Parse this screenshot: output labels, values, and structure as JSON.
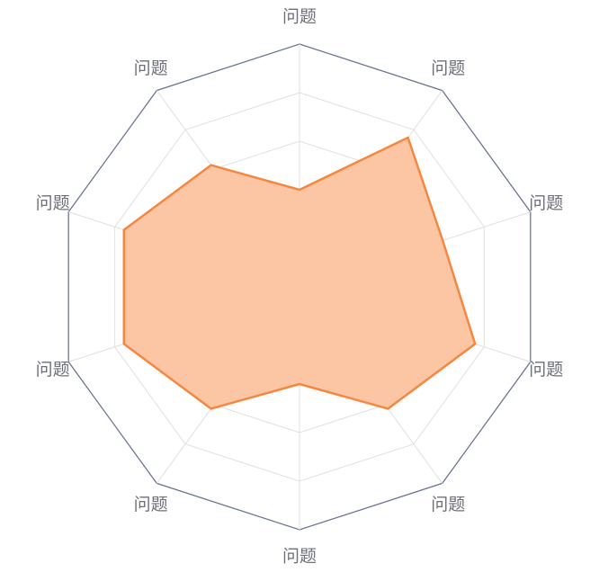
{
  "chart_data": {
    "type": "radar",
    "title": "",
    "indicators": [
      {
        "name": "问题",
        "max": 1
      },
      {
        "name": "问题",
        "max": 1
      },
      {
        "name": "问题",
        "max": 1
      },
      {
        "name": "问题",
        "max": 1
      },
      {
        "name": "问题",
        "max": 1
      },
      {
        "name": "问题",
        "max": 1
      },
      {
        "name": "问题",
        "max": 1
      },
      {
        "name": "问题",
        "max": 1
      },
      {
        "name": "问题",
        "max": 1
      },
      {
        "name": "问题",
        "max": 1
      }
    ],
    "series": [
      {
        "values": [
          0.4,
          0.76,
          0.62,
          0.76,
          0.62,
          0.4,
          0.62,
          0.76,
          0.76,
          0.62
        ]
      }
    ],
    "split_number": 5,
    "colors": {
      "line": "#f5873f",
      "area": "#fcc6a4",
      "outer_ring": "#6b7792",
      "grid": "#e0e0e0",
      "label": "#6e7079"
    }
  }
}
